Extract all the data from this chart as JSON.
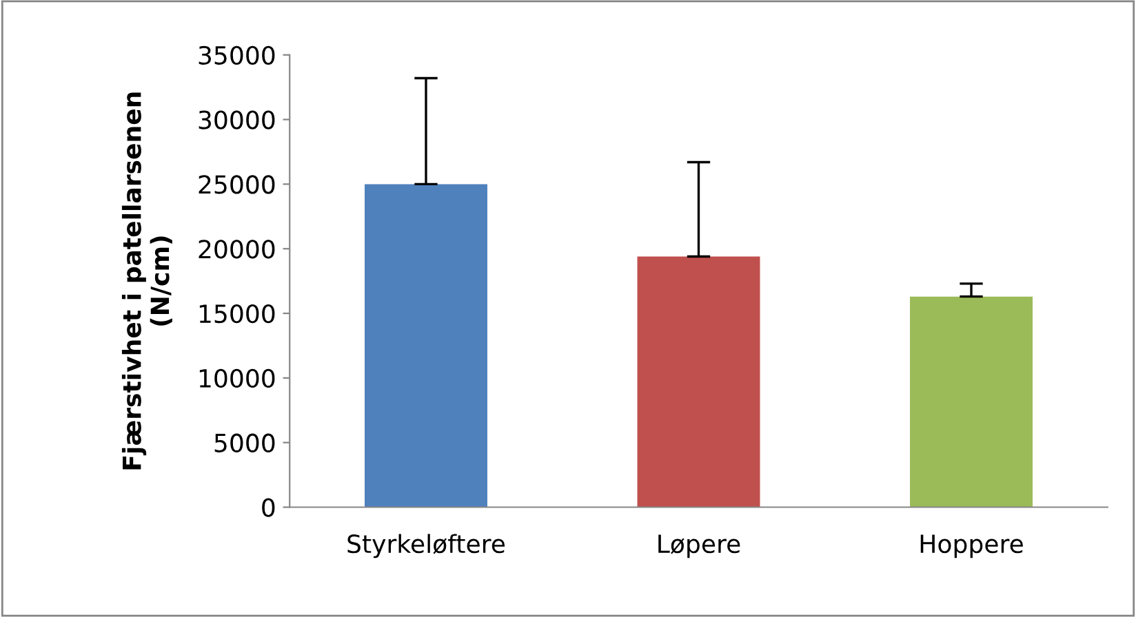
{
  "chart_data": {
    "type": "bar",
    "ylabel": "Fjærstivhet i patellarsenen\n(N/cm)",
    "categories": [
      "Styrkeløftere",
      "Løpere",
      "Hoppere"
    ],
    "values": [
      25000,
      19400,
      16300
    ],
    "colors": [
      "#4f81bd",
      "#c0504d",
      "#9bbb59"
    ],
    "errors": [
      [
        25000,
        33200
      ],
      [
        19400,
        26700
      ],
      [
        16300,
        17300
      ]
    ],
    "ylim": [
      0,
      35000
    ],
    "yticks": [
      0,
      5000,
      10000,
      15000,
      20000,
      25000,
      30000,
      35000
    ],
    "grid": false,
    "legend": false
  }
}
